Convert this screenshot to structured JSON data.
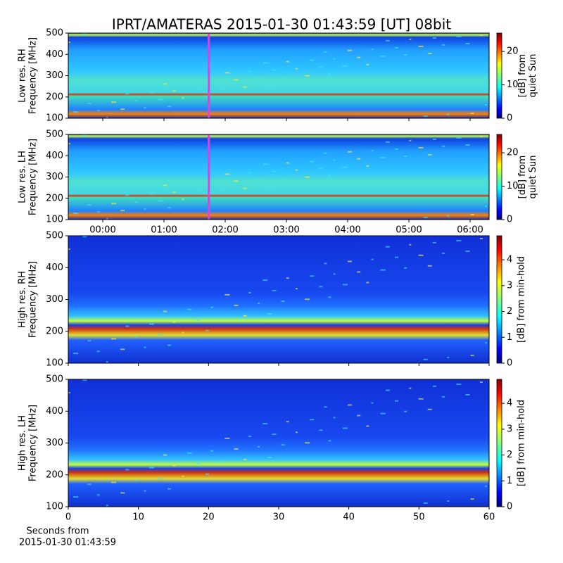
{
  "title": "IPRT/AMATERAS 2015-01-30 01:43:59 [UT]   08bit",
  "chart_data": [
    {
      "type": "heatmap",
      "ylabel": [
        "Low res. RH",
        "Frequency [MHz]"
      ],
      "xlim": [
        -0.563,
        6.31
      ],
      "ylim": [
        100,
        500
      ],
      "yticks": [
        100,
        200,
        300,
        400,
        500
      ],
      "marker_x": 1.733,
      "marker_color": "#e040e0",
      "colorbar_label": [
        "[dB] from",
        "quiet Sun"
      ],
      "clim": [
        0,
        25.5
      ],
      "cticks": [
        0,
        10,
        20
      ]
    },
    {
      "type": "heatmap",
      "ylabel": [
        "Low res. LH",
        "Frequency [MHz]"
      ],
      "xlim": [
        -0.563,
        6.31
      ],
      "ylim": [
        100,
        500
      ],
      "yticks": [
        100,
        200,
        300,
        400,
        500
      ],
      "xticks": [
        {
          "value": 0,
          "label": "00:00"
        },
        {
          "value": 1,
          "label": "01:00"
        },
        {
          "value": 2,
          "label": "02:00"
        },
        {
          "value": 3,
          "label": "03:00"
        },
        {
          "value": 4,
          "label": "04:00"
        },
        {
          "value": 5,
          "label": "05:00"
        },
        {
          "value": 6,
          "label": "06:00"
        }
      ],
      "marker_x": 1.733,
      "marker_color": "#e040e0",
      "colorbar_label": [
        "[dB] from",
        "quiet Sun"
      ],
      "clim": [
        0,
        25.5
      ],
      "cticks": [
        0,
        10,
        20
      ]
    },
    {
      "type": "heatmap",
      "ylabel": [
        "High res. RH",
        "Frequency [MHz]"
      ],
      "xlim": [
        0,
        60
      ],
      "ylim": [
        100,
        500
      ],
      "yticks": [
        100,
        200,
        300,
        400,
        500
      ],
      "colorbar_label": [
        "[dB] from min-hold"
      ],
      "clim": [
        0,
        4.93
      ],
      "cticks": [
        0,
        1,
        2,
        3,
        4
      ]
    },
    {
      "type": "heatmap",
      "ylabel": [
        "High res. LH",
        "Frequency [MHz]"
      ],
      "xlim": [
        0,
        60
      ],
      "ylim": [
        100,
        500
      ],
      "yticks": [
        100,
        200,
        300,
        400,
        500
      ],
      "xticks": [
        0,
        10,
        20,
        30,
        40,
        50,
        60
      ],
      "xlabel": [
        "Seconds from",
        "2015-01-30 01:43:59"
      ],
      "colorbar_label": [
        "[dB] from min-hold"
      ],
      "clim": [
        0,
        4.93
      ],
      "cticks": [
        0,
        1,
        2,
        3,
        4
      ]
    }
  ]
}
